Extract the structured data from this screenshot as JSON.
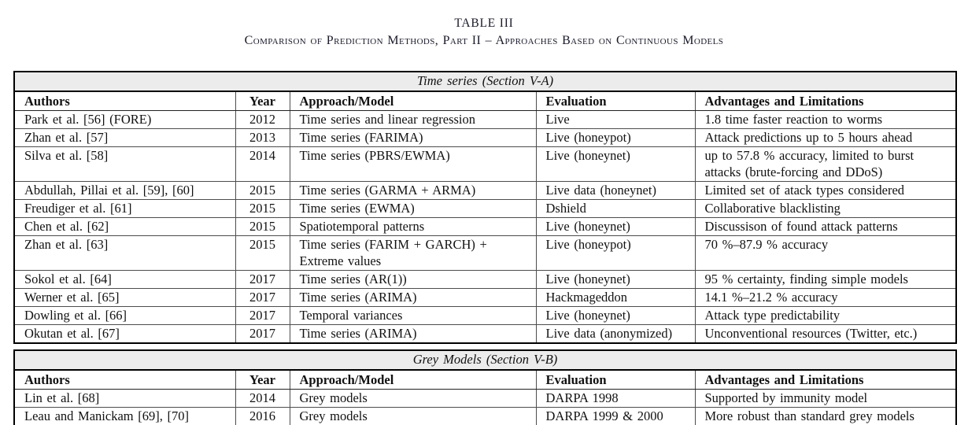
{
  "page": {
    "title": "TABLE III",
    "subtitle": "Comparison of Prediction Methods, Part II – Approaches Based on Continuous Models"
  },
  "columns": [
    "Authors",
    "Year",
    "Approach/Model",
    "Evaluation",
    "Advantages and Limitations"
  ],
  "colors": {
    "section_header_bg": "#ececec",
    "border": "#000000",
    "text": "#111111"
  },
  "sections": [
    {
      "heading": "Time series (Section V-A)",
      "rows": [
        [
          "Park et al. [56] (FORE)",
          "2012",
          "Time series and linear regression",
          "Live",
          "1.8 time faster reaction to worms"
        ],
        [
          "Zhan et al. [57]",
          "2013",
          "Time series (FARIMA)",
          "Live (honeypot)",
          "Attack predictions up to 5 hours ahead"
        ],
        [
          "Silva et al. [58]",
          "2014",
          "Time series (PBRS/EWMA)",
          "Live (honeynet)",
          "up to 57.8 % accuracy, limited to burst\nattacks (brute-forcing and DDoS)"
        ],
        [
          "Abdullah, Pillai et al. [59], [60]",
          "2015",
          "Time series (GARMA + ARMA)",
          "Live data (honeynet)",
          "Limited set of atack types considered"
        ],
        [
          "Freudiger et al. [61]",
          "2015",
          "Time series (EWMA)",
          "Dshield",
          "Collaborative blacklisting"
        ],
        [
          "Chen et al. [62]",
          "2015",
          "Spatiotemporal patterns",
          "Live (honeynet)",
          "Discussison of found attack patterns"
        ],
        [
          "Zhan et al. [63]",
          "2015",
          "Time series (FARIM + GARCH) +\nExtreme values",
          "Live (honeypot)",
          "70 %–87.9 % accuracy"
        ],
        [
          "Sokol et al. [64]",
          "2017",
          "Time series (AR(1))",
          "Live (honeynet)",
          "95 % certainty, finding simple models"
        ],
        [
          "Werner et al. [65]",
          "2017",
          "Time series (ARIMA)",
          "Hackmageddon",
          "14.1 %–21.2 % accuracy"
        ],
        [
          "Dowling et al. [66]",
          "2017",
          "Temporal variances",
          "Live (honeynet)",
          "Attack type predictability"
        ],
        [
          "Okutan et al. [67]",
          "2017",
          "Time series (ARIMA)",
          "Live data (anonymized)",
          "Unconventional resources (Twitter, etc.)"
        ]
      ]
    },
    {
      "heading": "Grey Models (Section V-B)",
      "rows": [
        [
          "Lin et al. [68]",
          "2014",
          "Grey models",
          "DARPA 1998",
          "Supported by immunity model"
        ],
        [
          "Leau and Manickam [69], [70]",
          "2016",
          "Grey models",
          "DARPA 1999 & 2000",
          "More robust than standard grey models"
        ]
      ]
    }
  ]
}
